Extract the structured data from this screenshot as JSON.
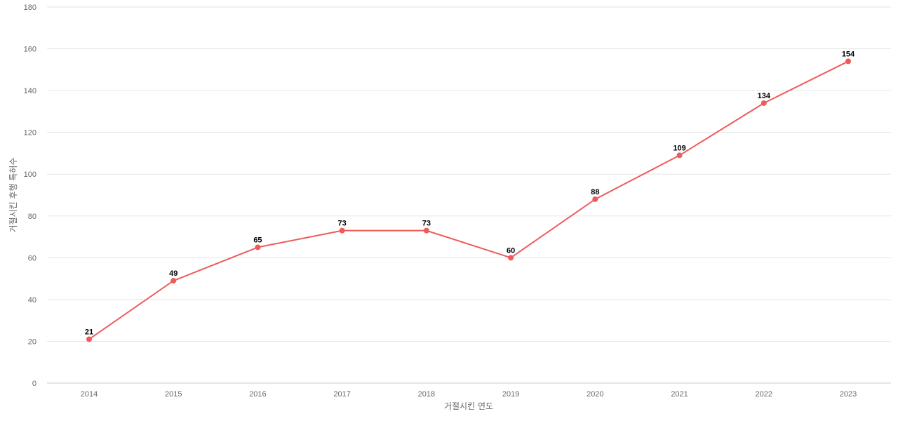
{
  "chart_data": {
    "type": "line",
    "title": "",
    "xlabel": "거절시킨 연도",
    "ylabel": "거절시킨 후행 특허수",
    "categories": [
      "2014",
      "2015",
      "2016",
      "2017",
      "2018",
      "2019",
      "2020",
      "2021",
      "2022",
      "2023"
    ],
    "series": [
      {
        "values": [
          21,
          49,
          65,
          73,
          73,
          60,
          88,
          109,
          134,
          154
        ],
        "color": "#ef5a5a"
      }
    ],
    "ylim": [
      0,
      180
    ],
    "yticks": [
      0,
      20,
      40,
      60,
      80,
      100,
      120,
      140,
      160,
      180
    ],
    "grid": true,
    "data_labels": true
  }
}
